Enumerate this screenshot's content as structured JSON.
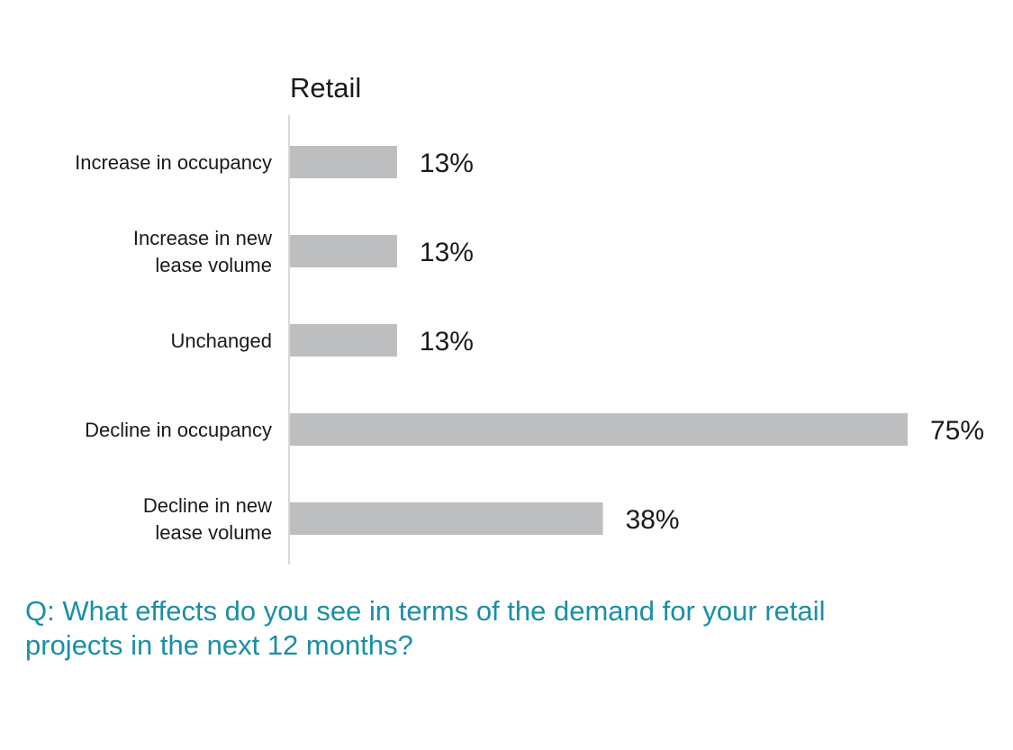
{
  "chart_data": {
    "type": "bar",
    "orientation": "horizontal",
    "title": "Retail",
    "categories": [
      [
        "Increase in occupancy"
      ],
      [
        "Increase in new",
        "lease volume"
      ],
      [
        "Unchanged"
      ],
      [
        "Decline in occupancy"
      ],
      [
        "Decline in new",
        "lease volume"
      ]
    ],
    "values": [
      13,
      13,
      13,
      75,
      38
    ],
    "value_labels": [
      "13%",
      "13%",
      "13%",
      "75%",
      "38%"
    ],
    "xlim": [
      0,
      75
    ],
    "grid": false,
    "legend": "none"
  },
  "question": "Q: What effects do you see in terms of the demand for your retail projects in the next 12 months?",
  "colors": {
    "bar": "#bcbebf",
    "axis": "#d9d9d9",
    "question": "#1a8fa6",
    "text": "#1a1a1a"
  }
}
